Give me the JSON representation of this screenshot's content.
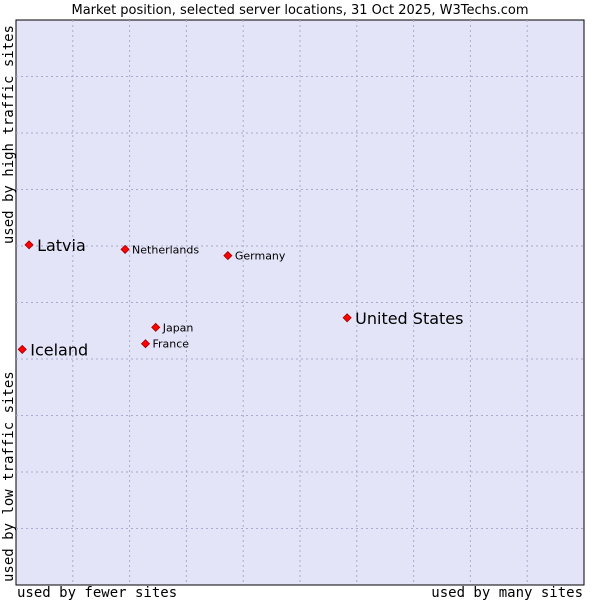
{
  "chart_data": {
    "type": "scatter",
    "title": "Market position, selected server locations, 31 Oct 2025, W3Techs.com",
    "xlabel_left": "used by fewer sites",
    "xlabel_right": "used by many sites",
    "ylabel_bottom": "used by low traffic sites",
    "ylabel_top": "used by high traffic sites",
    "xlim": [
      0,
      100
    ],
    "ylim": [
      0,
      100
    ],
    "grid": true,
    "colors": {
      "plot_background": "#e4e4f8",
      "grid": "#aaaacc",
      "point": "#ff0000",
      "point_stroke": "#990000"
    },
    "points": [
      {
        "name": "Latvia",
        "x": 2.3,
        "y": 60.2,
        "emphasis": "large"
      },
      {
        "name": "Netherlands",
        "x": 19.2,
        "y": 59.4,
        "emphasis": "small"
      },
      {
        "name": "Germany",
        "x": 37.3,
        "y": 58.3,
        "emphasis": "small"
      },
      {
        "name": "United States",
        "x": 58.3,
        "y": 47.3,
        "emphasis": "large"
      },
      {
        "name": "Japan",
        "x": 24.6,
        "y": 45.6,
        "emphasis": "small"
      },
      {
        "name": "France",
        "x": 22.8,
        "y": 42.7,
        "emphasis": "small"
      },
      {
        "name": "Iceland",
        "x": 1.1,
        "y": 41.7,
        "emphasis": "large"
      }
    ]
  }
}
